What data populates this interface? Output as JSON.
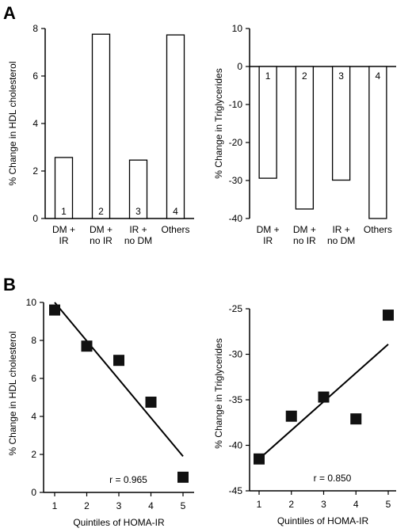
{
  "panels": {
    "A": {
      "label": "A"
    },
    "B": {
      "label": "B"
    }
  },
  "chart_data": [
    {
      "id": "hdl-bar",
      "panel": "A",
      "type": "bar",
      "ylabel": "% Change in HDL cholesterol",
      "ylim": [
        0,
        8
      ],
      "yticks": [
        0,
        2,
        4,
        6,
        8
      ],
      "categories": [
        [
          "DM +",
          "IR"
        ],
        [
          "DM +",
          "no IR"
        ],
        [
          "IR +",
          "no DM"
        ],
        [
          "Others"
        ]
      ],
      "bar_labels": [
        "1",
        "2",
        "3",
        "4"
      ],
      "values": [
        2.57,
        7.76,
        2.46,
        7.73
      ]
    },
    {
      "id": "tg-bar",
      "panel": "A",
      "type": "bar",
      "ylabel": "% Change in Triglycerides",
      "ylim": [
        -40,
        10
      ],
      "yticks": [
        10,
        0,
        -10,
        -20,
        -30,
        -40
      ],
      "categories": [
        [
          "DM +",
          "IR"
        ],
        [
          "DM +",
          "no IR"
        ],
        [
          "IR +",
          "no DM"
        ],
        [
          "Others"
        ]
      ],
      "bar_labels": [
        "1",
        "2",
        "3",
        "4"
      ],
      "values": [
        -29.4,
        -37.5,
        -29.9,
        -40.0
      ]
    },
    {
      "id": "hdl-scatter",
      "panel": "B",
      "type": "scatter",
      "xlabel": "Quintiles of HOMA-IR",
      "ylabel": "% Change in HDL cholesterol",
      "xlim": [
        1,
        5
      ],
      "ylim": [
        0,
        10
      ],
      "xticks": [
        1,
        2,
        3,
        4,
        5
      ],
      "yticks": [
        0,
        2,
        4,
        6,
        8,
        10
      ],
      "x": [
        1,
        2,
        3,
        4,
        5
      ],
      "y": [
        9.6,
        7.7,
        6.95,
        4.75,
        0.8
      ],
      "fit_line": {
        "x": [
          1,
          5
        ],
        "y": [
          10.0,
          1.9
        ]
      },
      "annotation": "r = 0.965"
    },
    {
      "id": "tg-scatter",
      "panel": "B",
      "type": "scatter",
      "xlabel": "Quintiles of HOMA-IR",
      "ylabel": "% Change in Triglycerides",
      "xlim": [
        1,
        5
      ],
      "ylim": [
        -45,
        -25
      ],
      "xticks": [
        1,
        2,
        3,
        4,
        5
      ],
      "yticks": [
        -25,
        -30,
        -35,
        -40,
        -45
      ],
      "x": [
        1,
        2,
        3,
        4,
        5
      ],
      "y": [
        -41.5,
        -36.8,
        -34.7,
        -37.1,
        -25.7
      ],
      "fit_line": {
        "x": [
          1,
          5
        ],
        "y": [
          -41.5,
          -28.9
        ]
      },
      "annotation": "r = 0.850"
    }
  ]
}
